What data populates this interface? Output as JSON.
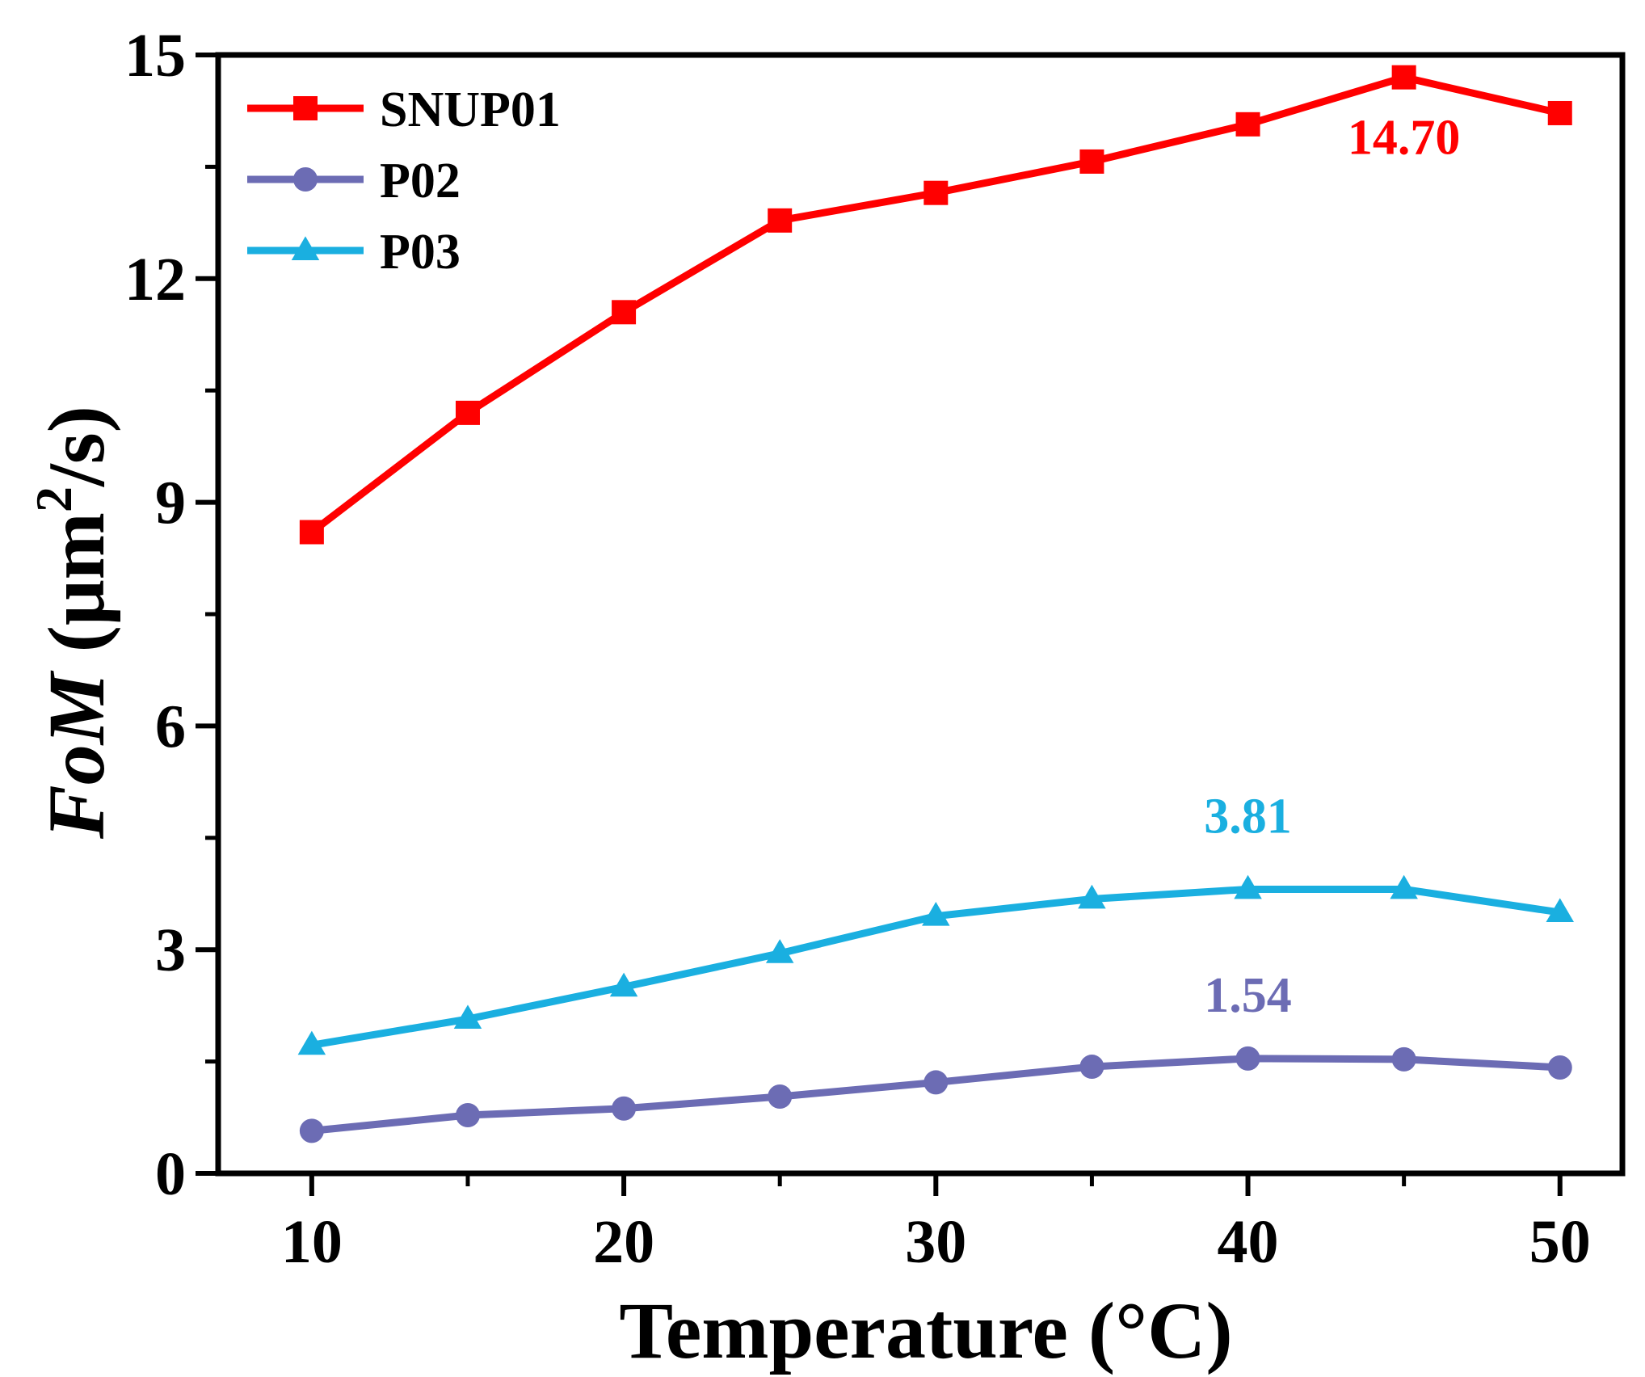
{
  "chart_data": {
    "type": "line",
    "x": [
      10,
      15,
      20,
      25,
      30,
      35,
      40,
      45,
      50
    ],
    "xlabel": "Temperature (°C)",
    "ylabel": {
      "italic": "FoM",
      "rest_before_sup": " (μm",
      "sup": "2",
      "rest_after_sup": "/s)"
    },
    "xlim": [
      7,
      52
    ],
    "ylim": [
      0,
      15
    ],
    "xticks": [
      10,
      20,
      30,
      40,
      50
    ],
    "yticks": [
      0,
      3,
      6,
      9,
      12,
      15
    ],
    "grid": false,
    "legend_position": "top-left",
    "series": [
      {
        "name": "SNUP01",
        "color": "#ff0000",
        "marker": "square",
        "values": [
          8.6,
          10.2,
          11.55,
          12.78,
          13.15,
          13.57,
          14.07,
          14.7,
          14.22
        ]
      },
      {
        "name": "P02",
        "color": "#6c6cb4",
        "marker": "circle",
        "values": [
          0.57,
          0.78,
          0.87,
          1.03,
          1.22,
          1.43,
          1.54,
          1.53,
          1.42
        ]
      },
      {
        "name": "P03",
        "color": "#1aafe0",
        "marker": "triangle",
        "values": [
          1.72,
          2.07,
          2.5,
          2.95,
          3.45,
          3.68,
          3.81,
          3.81,
          3.5
        ]
      }
    ],
    "annotations": [
      {
        "text": "14.70",
        "series": "SNUP01",
        "x": 45,
        "y": 14.7,
        "color": "#ff0000"
      },
      {
        "text": "3.81",
        "series": "P03",
        "x": 40,
        "y": 3.81,
        "color": "#1aafe0"
      },
      {
        "text": "1.54",
        "series": "P02",
        "x": 40,
        "y": 1.54,
        "color": "#6c6cb4"
      }
    ]
  }
}
